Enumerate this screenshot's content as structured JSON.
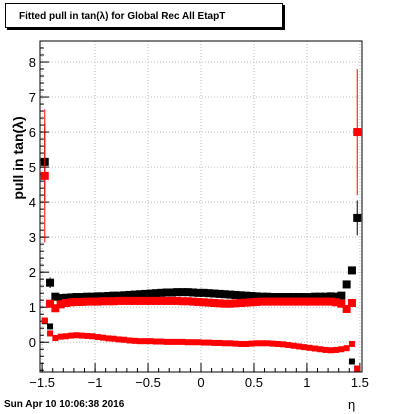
{
  "chart_data": {
    "type": "scatter",
    "title": "Fitted pull in tan(λ) for Global Rec All EtapT",
    "xlabel": "η",
    "ylabel": "pull in tan(λ)",
    "xlim": [
      -1.52,
      1.52
    ],
    "ylim": [
      -0.85,
      8.6
    ],
    "grid": true,
    "x_ticks": [
      {
        "value": -1.5,
        "label": "−1.5"
      },
      {
        "value": -1,
        "label": "−1"
      },
      {
        "value": -0.5,
        "label": "−0.5"
      },
      {
        "value": 0,
        "label": "0"
      },
      {
        "value": 0.5,
        "label": "0.5"
      },
      {
        "value": 1,
        "label": "1"
      },
      {
        "value": 1.5,
        "label": "1.5"
      }
    ],
    "y_ticks": [
      {
        "value": 0,
        "label": "0"
      },
      {
        "value": 1,
        "label": "1"
      },
      {
        "value": 2,
        "label": "2"
      },
      {
        "value": 3,
        "label": "3"
      },
      {
        "value": 4,
        "label": "4"
      },
      {
        "value": 5,
        "label": "5"
      },
      {
        "value": 6,
        "label": "6"
      },
      {
        "value": 7,
        "label": "7"
      },
      {
        "value": 8,
        "label": "8"
      }
    ],
    "series": [
      {
        "marker": "square",
        "color": "#000000",
        "points": [
          {
            "x": -1.475,
            "y": 5.15,
            "err": 1.1
          },
          {
            "x": -1.425,
            "y": 1.7,
            "err": 0.15
          },
          {
            "x": -1.375,
            "y": 1.3
          },
          {
            "x": -1.325,
            "y": 1.26
          },
          {
            "x": -1.275,
            "y": 1.27
          },
          {
            "x": -1.225,
            "y": 1.28
          },
          {
            "x": -1.175,
            "y": 1.29
          },
          {
            "x": -1.125,
            "y": 1.29
          },
          {
            "x": -1.075,
            "y": 1.3
          },
          {
            "x": -1.025,
            "y": 1.3
          },
          {
            "x": -0.975,
            "y": 1.31
          },
          {
            "x": -0.925,
            "y": 1.31
          },
          {
            "x": -0.875,
            "y": 1.32
          },
          {
            "x": -0.825,
            "y": 1.33
          },
          {
            "x": -0.775,
            "y": 1.33
          },
          {
            "x": -0.725,
            "y": 1.34
          },
          {
            "x": -0.675,
            "y": 1.35
          },
          {
            "x": -0.625,
            "y": 1.36
          },
          {
            "x": -0.575,
            "y": 1.37
          },
          {
            "x": -0.525,
            "y": 1.38
          },
          {
            "x": -0.475,
            "y": 1.39
          },
          {
            "x": -0.425,
            "y": 1.4
          },
          {
            "x": -0.375,
            "y": 1.41
          },
          {
            "x": -0.325,
            "y": 1.42
          },
          {
            "x": -0.275,
            "y": 1.42
          },
          {
            "x": -0.225,
            "y": 1.43
          },
          {
            "x": -0.175,
            "y": 1.43
          },
          {
            "x": -0.125,
            "y": 1.43
          },
          {
            "x": -0.075,
            "y": 1.42
          },
          {
            "x": -0.025,
            "y": 1.41
          },
          {
            "x": 0.025,
            "y": 1.41
          },
          {
            "x": 0.075,
            "y": 1.4
          },
          {
            "x": 0.125,
            "y": 1.39
          },
          {
            "x": 0.175,
            "y": 1.38
          },
          {
            "x": 0.225,
            "y": 1.37
          },
          {
            "x": 0.275,
            "y": 1.36
          },
          {
            "x": 0.325,
            "y": 1.35
          },
          {
            "x": 0.375,
            "y": 1.34
          },
          {
            "x": 0.425,
            "y": 1.33
          },
          {
            "x": 0.475,
            "y": 1.32
          },
          {
            "x": 0.525,
            "y": 1.31
          },
          {
            "x": 0.575,
            "y": 1.3
          },
          {
            "x": 0.625,
            "y": 1.3
          },
          {
            "x": 0.675,
            "y": 1.29
          },
          {
            "x": 0.725,
            "y": 1.29
          },
          {
            "x": 0.775,
            "y": 1.29
          },
          {
            "x": 0.825,
            "y": 1.29
          },
          {
            "x": 0.875,
            "y": 1.29
          },
          {
            "x": 0.925,
            "y": 1.29
          },
          {
            "x": 0.975,
            "y": 1.29
          },
          {
            "x": 1.025,
            "y": 1.29
          },
          {
            "x": 1.075,
            "y": 1.3
          },
          {
            "x": 1.125,
            "y": 1.3
          },
          {
            "x": 1.175,
            "y": 1.3
          },
          {
            "x": 1.225,
            "y": 1.31
          },
          {
            "x": 1.275,
            "y": 1.3
          },
          {
            "x": 1.325,
            "y": 1.33
          },
          {
            "x": 1.375,
            "y": 1.65
          },
          {
            "x": 1.425,
            "y": 2.05
          },
          {
            "x": 1.475,
            "y": 3.55,
            "err": 0.5
          }
        ],
        "lower_points": [
          {
            "x": -1.475,
            "y": 0.6
          },
          {
            "x": -1.425,
            "y": 0.45
          },
          {
            "x": 1.425,
            "y": -0.55
          },
          {
            "x": 1.475,
            "y": -0.75
          }
        ]
      },
      {
        "marker": "square",
        "color": "#ff0000",
        "points": [
          {
            "x": -1.475,
            "y": 4.75,
            "err": 1.9
          },
          {
            "x": -1.425,
            "y": 1.1
          },
          {
            "x": -1.375,
            "y": 0.97
          },
          {
            "x": -1.325,
            "y": 1.08
          },
          {
            "x": -1.275,
            "y": 1.12
          },
          {
            "x": -1.225,
            "y": 1.14
          },
          {
            "x": -1.175,
            "y": 1.15
          },
          {
            "x": -1.125,
            "y": 1.15
          },
          {
            "x": -1.075,
            "y": 1.16
          },
          {
            "x": -1.025,
            "y": 1.16
          },
          {
            "x": -0.975,
            "y": 1.16
          },
          {
            "x": -0.925,
            "y": 1.17
          },
          {
            "x": -0.875,
            "y": 1.17
          },
          {
            "x": -0.825,
            "y": 1.17
          },
          {
            "x": -0.775,
            "y": 1.18
          },
          {
            "x": -0.725,
            "y": 1.18
          },
          {
            "x": -0.675,
            "y": 1.18
          },
          {
            "x": -0.625,
            "y": 1.18
          },
          {
            "x": -0.575,
            "y": 1.18
          },
          {
            "x": -0.525,
            "y": 1.18
          },
          {
            "x": -0.475,
            "y": 1.18
          },
          {
            "x": -0.425,
            "y": 1.18
          },
          {
            "x": -0.375,
            "y": 1.18
          },
          {
            "x": -0.325,
            "y": 1.18
          },
          {
            "x": -0.275,
            "y": 1.18
          },
          {
            "x": -0.225,
            "y": 1.18
          },
          {
            "x": -0.175,
            "y": 1.17
          },
          {
            "x": -0.125,
            "y": 1.17
          },
          {
            "x": -0.075,
            "y": 1.16
          },
          {
            "x": -0.025,
            "y": 1.15
          },
          {
            "x": 0.025,
            "y": 1.14
          },
          {
            "x": 0.075,
            "y": 1.13
          },
          {
            "x": 0.125,
            "y": 1.12
          },
          {
            "x": 0.175,
            "y": 1.11
          },
          {
            "x": 0.225,
            "y": 1.1
          },
          {
            "x": 0.275,
            "y": 1.1
          },
          {
            "x": 0.325,
            "y": 1.11
          },
          {
            "x": 0.375,
            "y": 1.12
          },
          {
            "x": 0.425,
            "y": 1.13
          },
          {
            "x": 0.475,
            "y": 1.14
          },
          {
            "x": 0.525,
            "y": 1.15
          },
          {
            "x": 0.575,
            "y": 1.16
          },
          {
            "x": 0.625,
            "y": 1.16
          },
          {
            "x": 0.675,
            "y": 1.16
          },
          {
            "x": 0.725,
            "y": 1.16
          },
          {
            "x": 0.775,
            "y": 1.16
          },
          {
            "x": 0.825,
            "y": 1.16
          },
          {
            "x": 0.875,
            "y": 1.16
          },
          {
            "x": 0.925,
            "y": 1.16
          },
          {
            "x": 0.975,
            "y": 1.16
          },
          {
            "x": 1.025,
            "y": 1.16
          },
          {
            "x": 1.075,
            "y": 1.16
          },
          {
            "x": 1.125,
            "y": 1.16
          },
          {
            "x": 1.175,
            "y": 1.16
          },
          {
            "x": 1.225,
            "y": 1.16
          },
          {
            "x": 1.275,
            "y": 1.14
          },
          {
            "x": 1.325,
            "y": 1.1
          },
          {
            "x": 1.375,
            "y": 0.95
          },
          {
            "x": 1.425,
            "y": 1.12
          },
          {
            "x": 1.475,
            "y": 6.0,
            "err": 1.8
          }
        ],
        "lower_points": [
          {
            "x": -1.475,
            "y": 0.62
          },
          {
            "x": -1.425,
            "y": 0.25
          },
          {
            "x": -1.375,
            "y": 0.12
          },
          {
            "x": -1.325,
            "y": 0.16
          },
          {
            "x": -1.275,
            "y": 0.17
          },
          {
            "x": -1.225,
            "y": 0.19
          },
          {
            "x": -1.175,
            "y": 0.2
          },
          {
            "x": -1.125,
            "y": 0.19
          },
          {
            "x": -1.075,
            "y": 0.18
          },
          {
            "x": -1.025,
            "y": 0.17
          },
          {
            "x": -0.975,
            "y": 0.15
          },
          {
            "x": -0.925,
            "y": 0.13
          },
          {
            "x": -0.875,
            "y": 0.11
          },
          {
            "x": -0.825,
            "y": 0.1
          },
          {
            "x": -0.775,
            "y": 0.08
          },
          {
            "x": -0.725,
            "y": 0.07
          },
          {
            "x": -0.675,
            "y": 0.05
          },
          {
            "x": -0.625,
            "y": 0.04
          },
          {
            "x": -0.575,
            "y": 0.03
          },
          {
            "x": -0.525,
            "y": 0.03
          },
          {
            "x": -0.475,
            "y": 0.03
          },
          {
            "x": -0.425,
            "y": 0.02
          },
          {
            "x": -0.375,
            "y": 0.02
          },
          {
            "x": -0.325,
            "y": 0.01
          },
          {
            "x": -0.275,
            "y": 0.01
          },
          {
            "x": -0.225,
            "y": 0.01
          },
          {
            "x": -0.175,
            "y": 0.01
          },
          {
            "x": -0.125,
            "y": 0.0
          },
          {
            "x": -0.075,
            "y": 0.0
          },
          {
            "x": -0.025,
            "y": 0.0
          },
          {
            "x": 0.025,
            "y": -0.01
          },
          {
            "x": 0.075,
            "y": -0.01
          },
          {
            "x": 0.125,
            "y": -0.02
          },
          {
            "x": 0.175,
            "y": -0.02
          },
          {
            "x": 0.225,
            "y": -0.03
          },
          {
            "x": 0.275,
            "y": -0.03
          },
          {
            "x": 0.325,
            "y": -0.04
          },
          {
            "x": 0.375,
            "y": -0.05
          },
          {
            "x": 0.425,
            "y": -0.05
          },
          {
            "x": 0.475,
            "y": -0.04
          },
          {
            "x": 0.525,
            "y": -0.03
          },
          {
            "x": 0.575,
            "y": -0.03
          },
          {
            "x": 0.625,
            "y": -0.03
          },
          {
            "x": 0.675,
            "y": -0.04
          },
          {
            "x": 0.725,
            "y": -0.05
          },
          {
            "x": 0.775,
            "y": -0.06
          },
          {
            "x": 0.825,
            "y": -0.08
          },
          {
            "x": 0.875,
            "y": -0.1
          },
          {
            "x": 0.925,
            "y": -0.12
          },
          {
            "x": 0.975,
            "y": -0.14
          },
          {
            "x": 1.025,
            "y": -0.16
          },
          {
            "x": 1.075,
            "y": -0.18
          },
          {
            "x": 1.125,
            "y": -0.2
          },
          {
            "x": 1.175,
            "y": -0.22
          },
          {
            "x": 1.225,
            "y": -0.23
          },
          {
            "x": 1.275,
            "y": -0.22
          },
          {
            "x": 1.325,
            "y": -0.2
          },
          {
            "x": 1.375,
            "y": -0.17
          },
          {
            "x": 1.425,
            "y": -0.05
          },
          {
            "x": 1.475,
            "y": -0.75
          }
        ]
      }
    ]
  },
  "page": {
    "title": "Fitted pull in tan(λ) for Global Rec All EtapT",
    "xlabel": "η",
    "ylabel": "pull in tan(λ)",
    "datestamp": "Sun Apr 10 10:06:38 2016"
  }
}
